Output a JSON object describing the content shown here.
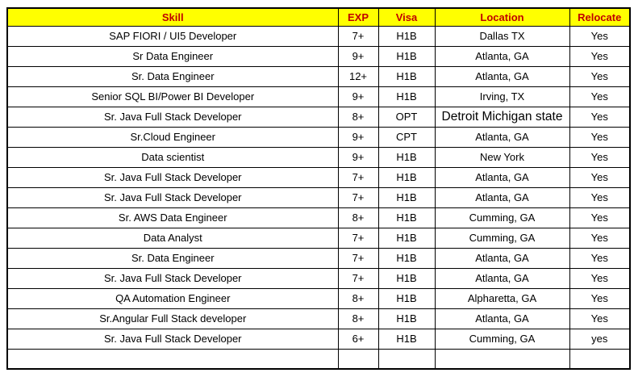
{
  "table": {
    "colors": {
      "header_bg": "#FFFF00",
      "header_text": "#C00000",
      "border": "#000000",
      "body_text": "#000000"
    },
    "headers": {
      "skill": "Skill",
      "exp": "EXP",
      "visa": "Visa",
      "location": "Location",
      "relocate": "Relocate"
    },
    "rows": [
      {
        "skill": "SAP FIORI / UI5 Developer",
        "exp": "7+",
        "visa": "H1B",
        "location": "Dallas TX",
        "relocate": "Yes"
      },
      {
        "skill": "Sr Data Engineer",
        "exp": "9+",
        "visa": "H1B",
        "location": "Atlanta, GA",
        "relocate": "Yes"
      },
      {
        "skill": "Sr. Data Engineer",
        "exp": "12+",
        "visa": "H1B",
        "location": "Atlanta, GA",
        "relocate": "Yes"
      },
      {
        "skill": "Senior SQL BI/Power BI Developer",
        "exp": "9+",
        "visa": "H1B",
        "location": "Irving, TX",
        "relocate": "Yes"
      },
      {
        "skill": "Sr. Java Full Stack Developer",
        "exp": "8+",
        "visa": "OPT",
        "location": "Detroit Michigan state",
        "relocate": "Yes",
        "location_large": true
      },
      {
        "skill": "Sr.Cloud Engineer",
        "exp": "9+",
        "visa": "CPT",
        "location": "Atlanta, GA",
        "relocate": "Yes"
      },
      {
        "skill": "Data scientist",
        "exp": "9+",
        "visa": "H1B",
        "location": "New York",
        "relocate": "Yes"
      },
      {
        "skill": "Sr. Java Full Stack Developer",
        "exp": "7+",
        "visa": "H1B",
        "location": "Atlanta, GA",
        "relocate": "Yes"
      },
      {
        "skill": "Sr. Java Full Stack Developer",
        "exp": "7+",
        "visa": "H1B",
        "location": "Atlanta, GA",
        "relocate": "Yes"
      },
      {
        "skill": "Sr. AWS Data Engineer",
        "exp": "8+",
        "visa": "H1B",
        "location": "Cumming, GA",
        "relocate": "Yes"
      },
      {
        "skill": "Data  Analyst",
        "exp": "7+",
        "visa": "H1B",
        "location": "Cumming, GA",
        "relocate": "Yes"
      },
      {
        "skill": "Sr. Data Engineer",
        "exp": "7+",
        "visa": "H1B",
        "location": "Atlanta, GA",
        "relocate": "Yes"
      },
      {
        "skill": "Sr. Java Full Stack Developer",
        "exp": "7+",
        "visa": "H1B",
        "location": "Atlanta, GA",
        "relocate": "Yes"
      },
      {
        "skill": "QA Automation Engineer",
        "exp": "8+",
        "visa": "H1B",
        "location": "Alpharetta, GA",
        "relocate": "Yes"
      },
      {
        "skill": "Sr.Angular Full Stack developer",
        "exp": "8+",
        "visa": "H1B",
        "location": "Atlanta, GA",
        "relocate": "Yes"
      },
      {
        "skill": "Sr. Java Full Stack Developer",
        "exp": "6+",
        "visa": "H1B",
        "location": "Cumming, GA",
        "relocate": "yes"
      }
    ]
  }
}
